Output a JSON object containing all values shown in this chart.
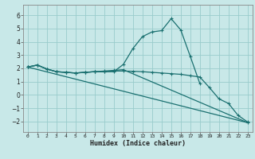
{
  "xlabel": "Humidex (Indice chaleur)",
  "bg_color": "#c8e8e8",
  "grid_color": "#99cccc",
  "line_color": "#1a7070",
  "xlim": [
    -0.5,
    23.5
  ],
  "ylim": [
    -2.8,
    6.8
  ],
  "xticks": [
    0,
    1,
    2,
    3,
    4,
    5,
    6,
    7,
    8,
    9,
    10,
    11,
    12,
    13,
    14,
    15,
    16,
    17,
    18,
    19,
    20,
    21,
    22,
    23
  ],
  "yticks": [
    -2,
    -1,
    0,
    1,
    2,
    3,
    4,
    5,
    6
  ],
  "line1_x": [
    0,
    1,
    2,
    3,
    4,
    5,
    6,
    7,
    8,
    9,
    10,
    11,
    12,
    13,
    14,
    15,
    16,
    17,
    18
  ],
  "line1_y": [
    2.1,
    2.25,
    1.95,
    1.75,
    1.7,
    1.65,
    1.7,
    1.75,
    1.75,
    1.75,
    2.3,
    3.5,
    4.4,
    4.75,
    4.85,
    5.75,
    4.9,
    2.9,
    0.85
  ],
  "line2_x": [
    0,
    1,
    2,
    3,
    4,
    5,
    6,
    7,
    8,
    9,
    10,
    11,
    12,
    13,
    14,
    15,
    16,
    17,
    18,
    19,
    20,
    21,
    22,
    23
  ],
  "line2_y": [
    2.1,
    2.25,
    1.95,
    1.75,
    1.7,
    1.65,
    1.7,
    1.75,
    1.75,
    1.8,
    1.8,
    1.78,
    1.75,
    1.7,
    1.65,
    1.6,
    1.55,
    1.45,
    1.35,
    0.55,
    -0.3,
    -0.65,
    -1.55,
    -2.05
  ],
  "line3_x": [
    0,
    1,
    2,
    3,
    4,
    5,
    6,
    7,
    8,
    9,
    10,
    23
  ],
  "line3_y": [
    2.1,
    2.25,
    1.95,
    1.75,
    1.7,
    1.65,
    1.7,
    1.75,
    1.8,
    1.85,
    1.9,
    -2.1
  ],
  "line4_x": [
    0,
    23
  ],
  "line4_y": [
    2.1,
    -2.1
  ]
}
